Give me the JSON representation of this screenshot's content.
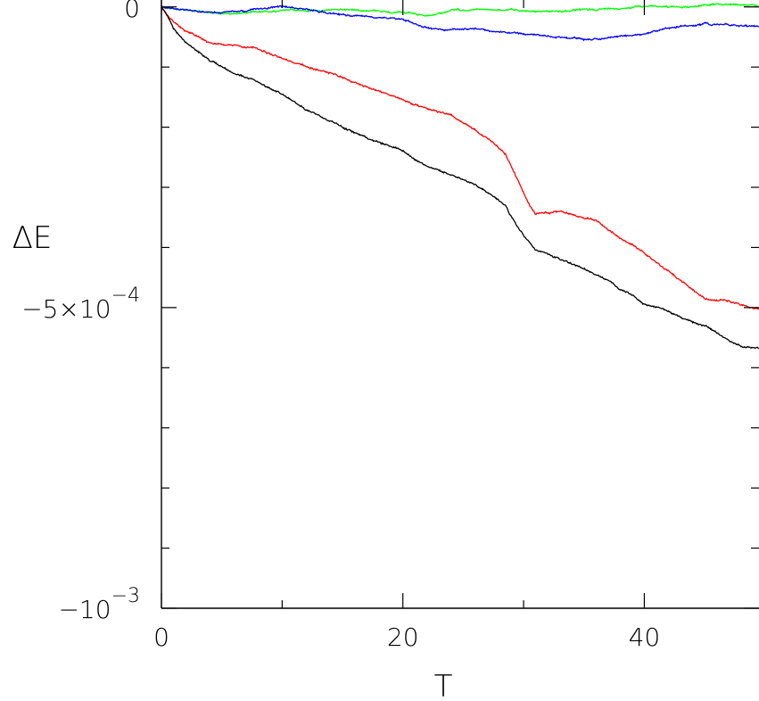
{
  "chart_data": {
    "type": "line",
    "title": "",
    "xlabel": "T",
    "ylabel": "ΔE",
    "xlim": [
      0,
      49.5
    ],
    "ylim": [
      -0.001,
      1.15e-05
    ],
    "x_ticks": [
      {
        "value": 0,
        "label": "0"
      },
      {
        "value": 20,
        "label": "20"
      },
      {
        "value": 40,
        "label": "40"
      }
    ],
    "x_minor_ticks": [
      10,
      30
    ],
    "y_ticks": [
      {
        "value": 0,
        "label": "0",
        "mantissa": "0",
        "exponent": ""
      },
      {
        "value": -0.0005,
        "label": "−5×10^−4",
        "mantissa": "−5×10",
        "exponent": "−4"
      },
      {
        "value": -0.001,
        "label": "−10^−3",
        "mantissa": "−10",
        "exponent": "−3"
      }
    ],
    "y_minor_ticks": [
      -0.0001,
      -0.0002,
      -0.0003,
      -0.0004,
      -0.0006,
      -0.0007,
      -0.0008,
      -0.0009
    ],
    "grid": false,
    "series": [
      {
        "color": "#00ff00",
        "x": [
          0,
          2,
          5,
          8,
          10,
          13,
          15,
          18,
          21,
          22,
          24,
          26,
          30,
          32,
          35,
          38,
          40,
          43,
          45,
          47,
          49.5
        ],
        "y": [
          0,
          -5e-06,
          -1.2e-05,
          -8e-06,
          -6e-06,
          -6e-06,
          -4e-06,
          -6e-06,
          -1.2e-05,
          -1.6e-05,
          -6e-06,
          -4e-06,
          -6e-06,
          -8e-06,
          -5e-06,
          -2e-06,
          2e-06,
          -1e-06,
          3e-06,
          5e-06,
          1e-06
        ]
      },
      {
        "color": "#0000ff",
        "x": [
          0,
          2,
          4,
          6,
          8,
          10,
          12,
          14,
          16,
          18,
          20,
          22,
          24,
          26,
          28,
          30,
          33,
          35,
          38,
          40,
          42,
          45,
          47,
          49.5
        ],
        "y": [
          0,
          -5e-06,
          -1e-05,
          -8e-06,
          -4e-06,
          1e-06,
          -4e-06,
          -1e-05,
          -1.5e-05,
          -1.6e-05,
          -2e-05,
          -3.5e-05,
          -3.8e-05,
          -3.5e-05,
          -4.2e-05,
          -4.5e-05,
          -5e-05,
          -5.5e-05,
          -5e-05,
          -4.5e-05,
          -3.5e-05,
          -2.8e-05,
          -3e-05,
          -3.2e-05
        ]
      },
      {
        "color": "#ff0000",
        "x": [
          0,
          1,
          2,
          4,
          6,
          8,
          10,
          12,
          14,
          16,
          18,
          20,
          22,
          24,
          26,
          27.5,
          28.5,
          29,
          30,
          30.5,
          31,
          33,
          35,
          36,
          37,
          38,
          39,
          40,
          41,
          42,
          44,
          45,
          47,
          49.5
        ],
        "y": [
          0,
          -2.5e-05,
          -4e-05,
          -6e-05,
          -6.5e-05,
          -7e-05,
          -8.5e-05,
          -0.0001,
          -0.00011,
          -0.000125,
          -0.00014,
          -0.000155,
          -0.00017,
          -0.00018,
          -0.000205,
          -0.000225,
          -0.000245,
          -0.000265,
          -0.00031,
          -0.00033,
          -0.000345,
          -0.00034,
          -0.00035,
          -0.000355,
          -0.00037,
          -0.000385,
          -0.000395,
          -0.00041,
          -0.000425,
          -0.00044,
          -0.00047,
          -0.000485,
          -0.00049,
          -0.000502
        ]
      },
      {
        "color": "#000000",
        "x": [
          0,
          0.5,
          1,
          2,
          3,
          4,
          6,
          8,
          10,
          12,
          14,
          16,
          18,
          20,
          22,
          24,
          26,
          27.5,
          28.5,
          29,
          30,
          31,
          33,
          35,
          37,
          38,
          39,
          40,
          41,
          42,
          43,
          44,
          45,
          46,
          47,
          48,
          49.5
        ],
        "y": [
          0,
          -1.5e-05,
          -3.5e-05,
          -6e-05,
          -7.5e-05,
          -9e-05,
          -0.00011,
          -0.000125,
          -0.000145,
          -0.00017,
          -0.00019,
          -0.00021,
          -0.000225,
          -0.00024,
          -0.000265,
          -0.00028,
          -0.000295,
          -0.000315,
          -0.00033,
          -0.00035,
          -0.00038,
          -0.000405,
          -0.00042,
          -0.000435,
          -0.000455,
          -0.00047,
          -0.00048,
          -0.000495,
          -0.0005,
          -0.000505,
          -0.000515,
          -0.000525,
          -0.00053,
          -0.00054,
          -0.000555,
          -0.000565,
          -0.000568
        ]
      }
    ]
  }
}
